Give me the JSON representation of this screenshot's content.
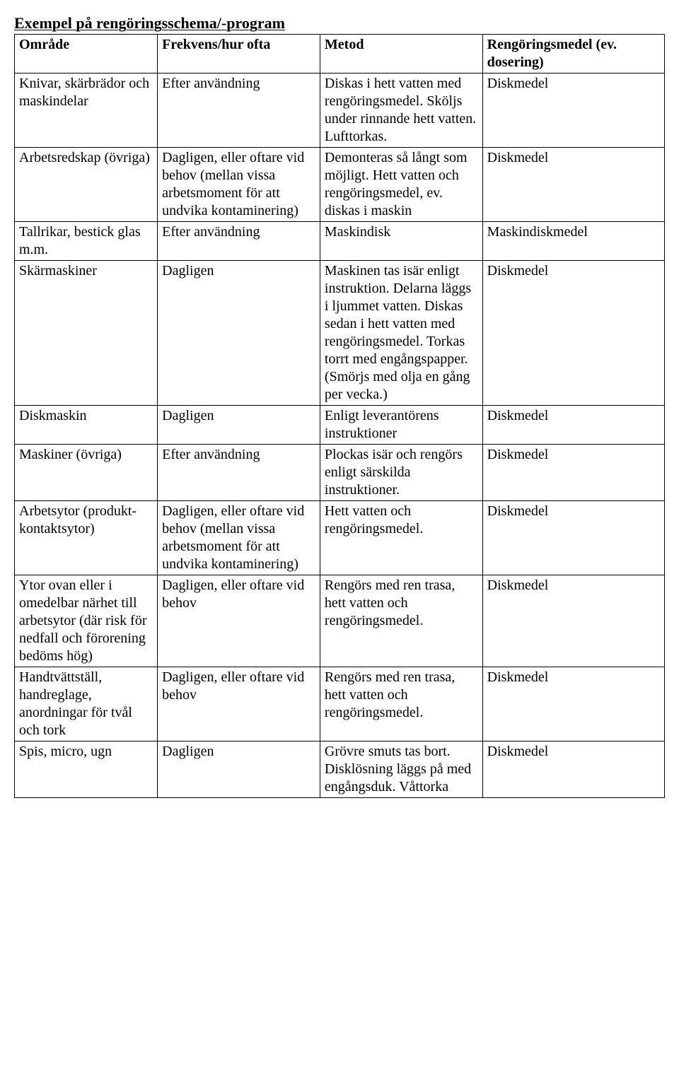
{
  "title": "Exempel på rengöringsschema/-program",
  "headers": {
    "c1": "Område",
    "c2": "Frekvens/hur ofta",
    "c3": "Metod",
    "c4": "Rengöringsmedel (ev. dosering)"
  },
  "rows": [
    {
      "c1": "Knivar, skärbrädor och maskindelar",
      "c2": "Efter användning",
      "c3": "Diskas i hett vatten med rengöringsmedel. Sköljs under rinnande hett vatten. Lufttorkas.",
      "c4": "Diskmedel"
    },
    {
      "c1": "Arbetsredskap (övriga)",
      "c2": "Dagligen, eller oftare vid behov (mellan vissa arbetsmoment för att undvika kontaminering)",
      "c3": "Demonteras så långt som möjligt. Hett vatten och rengöringsmedel, ev. diskas i maskin",
      "c4": "Diskmedel"
    },
    {
      "c1": "Tallrikar, bestick glas m.m.",
      "c2": "Efter användning",
      "c3": "Maskindisk",
      "c4": "Maskindiskmedel"
    },
    {
      "c1": "Skärmaskiner",
      "c2": "Dagligen",
      "c3": "Maskinen tas isär enligt instruktion. Delarna läggs i ljummet vatten. Diskas sedan i hett vatten med rengöringsmedel. Torkas torrt med engångspapper. (Smörjs med olja en gång per vecka.)",
      "c4": "Diskmedel"
    },
    {
      "c1": "Diskmaskin",
      "c2": "Dagligen",
      "c3": "Enligt leverantörens instruktioner",
      "c4": "Diskmedel"
    },
    {
      "c1": "Maskiner (övriga)",
      "c2": "Efter användning",
      "c3": "Plockas isär och rengörs enligt särskilda instruktioner.",
      "c4": "Diskmedel"
    },
    {
      "c1": "Arbetsytor (produkt-kontaktsytor)",
      "c2": "Dagligen, eller oftare vid behov (mellan vissa arbetsmoment för att undvika kontaminering)",
      "c3": "Hett vatten och rengöringsmedel.",
      "c4": "Diskmedel"
    },
    {
      "c1": "Ytor ovan eller i omedelbar närhet till arbetsytor (där risk för nedfall och förorening bedöms hög)",
      "c2": "Dagligen, eller oftare vid behov",
      "c3": "Rengörs med ren trasa, hett vatten och rengöringsmedel.",
      "c4": "Diskmedel"
    },
    {
      "c1": "Handtvättställ, handreglage, anordningar för tvål och tork",
      "c2": "Dagligen, eller oftare vid behov",
      "c3": "Rengörs med ren trasa, hett vatten och rengöringsmedel.",
      "c4": "Diskmedel"
    },
    {
      "c1": "Spis, micro, ugn",
      "c2": "Dagligen",
      "c3": "Grövre smuts tas bort. Disklösning läggs på med engångsduk. Våttorka",
      "c4": "Diskmedel"
    }
  ]
}
